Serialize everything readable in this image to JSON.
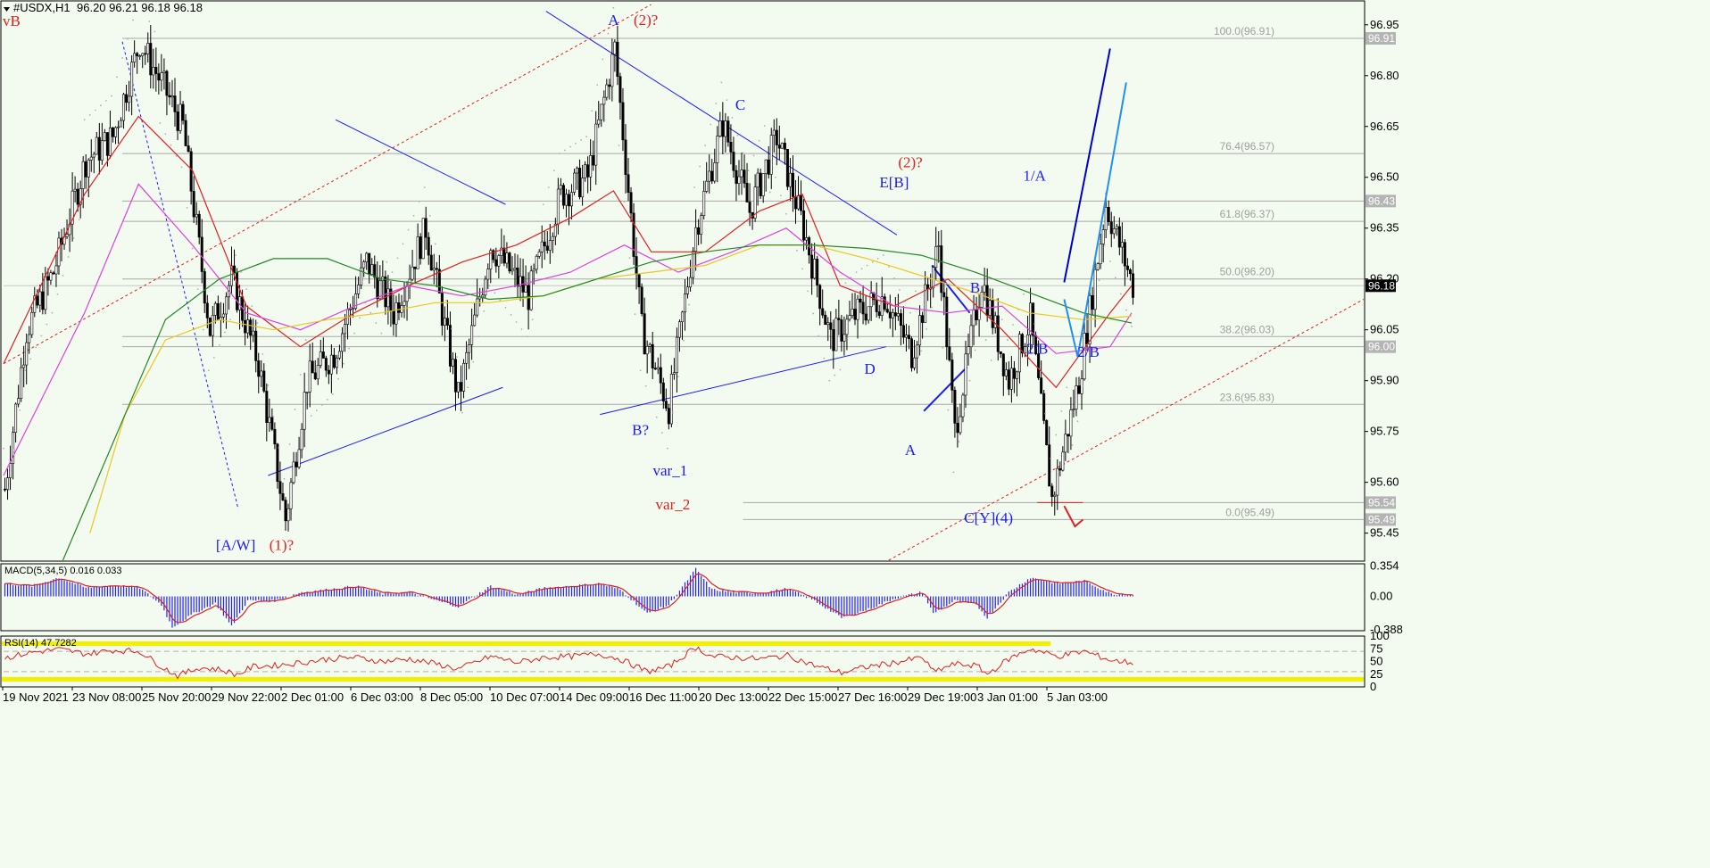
{
  "header": {
    "symbol_label": "#USDX,H1",
    "ohlc_label": "96.20 96.21 96.18 96.18",
    "corner_wave_label": "vB"
  },
  "chart_data": {
    "type": "candlestick",
    "symbol": "#USDX",
    "timeframe": "H1",
    "y_axis": {
      "ylim": [
        95.37,
        97.01
      ],
      "ticks": [
        "96.95",
        "96.80",
        "96.65",
        "96.50",
        "96.35",
        "96.20",
        "96.05",
        "95.90",
        "95.75",
        "95.60",
        "95.45"
      ]
    },
    "x_axis": {
      "ticks": [
        "19 Nov 2021",
        "23 Nov 08:00",
        "25 Nov 20:00",
        "29 Nov 22:00",
        "2 Dec 01:00",
        "6 Dec 03:00",
        "8 Dec 05:00",
        "10 Dec 07:00",
        "14 Dec 09:00",
        "16 Dec 11:00",
        "20 Dec 13:00",
        "22 Dec 15:00",
        "27 Dec 16:00",
        "29 Dec 19:00",
        "3 Jan 01:00",
        "5 Jan 03:00"
      ]
    },
    "price_key_points": [
      {
        "t": 0,
        "v": 95.58
      },
      {
        "t": 8,
        "v": 96.05
      },
      {
        "t": 18,
        "v": 96.22
      },
      {
        "t": 30,
        "v": 96.55
      },
      {
        "t": 40,
        "v": 96.62
      },
      {
        "t": 50,
        "v": 96.9
      },
      {
        "t": 58,
        "v": 96.78
      },
      {
        "t": 66,
        "v": 96.65
      },
      {
        "t": 76,
        "v": 96.05
      },
      {
        "t": 84,
        "v": 96.2
      },
      {
        "t": 94,
        "v": 95.95
      },
      {
        "t": 104,
        "v": 95.49
      },
      {
        "t": 112,
        "v": 95.9
      },
      {
        "t": 122,
        "v": 95.98
      },
      {
        "t": 134,
        "v": 96.25
      },
      {
        "t": 144,
        "v": 96.1
      },
      {
        "t": 156,
        "v": 96.35
      },
      {
        "t": 168,
        "v": 95.85
      },
      {
        "t": 180,
        "v": 96.3
      },
      {
        "t": 194,
        "v": 96.15
      },
      {
        "t": 206,
        "v": 96.45
      },
      {
        "t": 216,
        "v": 96.5
      },
      {
        "t": 226,
        "v": 96.88
      },
      {
        "t": 236,
        "v": 96.05
      },
      {
        "t": 246,
        "v": 95.82
      },
      {
        "t": 256,
        "v": 96.35
      },
      {
        "t": 266,
        "v": 96.66
      },
      {
        "t": 276,
        "v": 96.4
      },
      {
        "t": 286,
        "v": 96.62
      },
      {
        "t": 296,
        "v": 96.35
      },
      {
        "t": 306,
        "v": 96.02
      },
      {
        "t": 316,
        "v": 96.1
      },
      {
        "t": 326,
        "v": 96.15
      },
      {
        "t": 336,
        "v": 95.98
      },
      {
        "t": 346,
        "v": 96.3
      },
      {
        "t": 352,
        "v": 95.75
      },
      {
        "t": 362,
        "v": 96.2
      },
      {
        "t": 372,
        "v": 95.9
      },
      {
        "t": 380,
        "v": 96.08
      },
      {
        "t": 388,
        "v": 95.55
      },
      {
        "t": 398,
        "v": 95.9
      },
      {
        "t": 408,
        "v": 96.42
      },
      {
        "t": 418,
        "v": 96.18
      }
    ],
    "moving_averages": [
      {
        "name": "MA red",
        "color": "#e02020",
        "points": [
          [
            0,
            95.95
          ],
          [
            30,
            96.45
          ],
          [
            50,
            96.68
          ],
          [
            70,
            96.52
          ],
          [
            90,
            96.12
          ],
          [
            110,
            96.0
          ],
          [
            130,
            96.1
          ],
          [
            150,
            96.18
          ],
          [
            170,
            96.25
          ],
          [
            190,
            96.3
          ],
          [
            210,
            96.38
          ],
          [
            226,
            96.46
          ],
          [
            240,
            96.28
          ],
          [
            260,
            96.28
          ],
          [
            280,
            96.4
          ],
          [
            296,
            96.45
          ],
          [
            310,
            96.18
          ],
          [
            330,
            96.12
          ],
          [
            350,
            96.2
          ],
          [
            370,
            96.05
          ],
          [
            390,
            95.88
          ],
          [
            410,
            96.1
          ],
          [
            418,
            96.18
          ]
        ]
      },
      {
        "name": "MA magenta",
        "color": "#e040e0",
        "points": [
          [
            0,
            95.62
          ],
          [
            30,
            96.1
          ],
          [
            50,
            96.48
          ],
          [
            70,
            96.3
          ],
          [
            90,
            96.1
          ],
          [
            110,
            96.05
          ],
          [
            130,
            96.12
          ],
          [
            150,
            96.18
          ],
          [
            170,
            96.15
          ],
          [
            190,
            96.18
          ],
          [
            210,
            96.22
          ],
          [
            230,
            96.3
          ],
          [
            250,
            96.22
          ],
          [
            270,
            96.28
          ],
          [
            290,
            96.35
          ],
          [
            310,
            96.22
          ],
          [
            330,
            96.12
          ],
          [
            350,
            96.1
          ],
          [
            370,
            96.12
          ],
          [
            390,
            95.98
          ],
          [
            410,
            96.0
          ],
          [
            418,
            96.1
          ]
        ]
      },
      {
        "name": "MA yellow",
        "color": "#e8c820",
        "points": [
          [
            32,
            95.45
          ],
          [
            45,
            95.8
          ],
          [
            60,
            96.02
          ],
          [
            80,
            96.08
          ],
          [
            100,
            96.05
          ],
          [
            120,
            96.08
          ],
          [
            140,
            96.1
          ],
          [
            160,
            96.13
          ],
          [
            180,
            96.13
          ],
          [
            200,
            96.15
          ],
          [
            220,
            96.2
          ],
          [
            240,
            96.22
          ],
          [
            260,
            96.24
          ],
          [
            280,
            96.3
          ],
          [
            300,
            96.3
          ],
          [
            320,
            96.26
          ],
          [
            340,
            96.21
          ],
          [
            360,
            96.16
          ],
          [
            380,
            96.1
          ],
          [
            400,
            96.08
          ],
          [
            418,
            96.09
          ]
        ]
      },
      {
        "name": "MA green",
        "color": "#228822",
        "points": [
          [
            22,
            95.37
          ],
          [
            45,
            95.8
          ],
          [
            60,
            96.08
          ],
          [
            80,
            96.2
          ],
          [
            100,
            96.26
          ],
          [
            120,
            96.26
          ],
          [
            140,
            96.2
          ],
          [
            160,
            96.18
          ],
          [
            180,
            96.14
          ],
          [
            200,
            96.15
          ],
          [
            220,
            96.2
          ],
          [
            240,
            96.25
          ],
          [
            260,
            96.28
          ],
          [
            280,
            96.3
          ],
          [
            300,
            96.3
          ],
          [
            320,
            96.29
          ],
          [
            340,
            96.27
          ],
          [
            360,
            96.22
          ],
          [
            380,
            96.16
          ],
          [
            400,
            96.1
          ],
          [
            418,
            96.07
          ]
        ]
      }
    ],
    "horizontal_levels": [
      {
        "price": 96.91,
        "label": "100.0(96.91)",
        "axis_label": "96.91"
      },
      {
        "price": 96.57,
        "label": "76.4(96.57)"
      },
      {
        "price": 96.43,
        "label": "",
        "axis_label": "96.43"
      },
      {
        "price": 96.37,
        "label": "61.8(96.37)"
      },
      {
        "price": 96.2,
        "label": "50.0(96.20)"
      },
      {
        "price": 96.03,
        "label": "38.2(96.03)"
      },
      {
        "price": 96.0,
        "label": "",
        "axis_label": "96.00"
      },
      {
        "price": 95.83,
        "label": "23.6(95.83)"
      },
      {
        "price": 95.54,
        "label": "",
        "axis_label": "95.54"
      },
      {
        "price": 95.49,
        "label": "0.0(95.49)",
        "axis_label": "95.49"
      }
    ],
    "current_price": {
      "price": 96.18,
      "label": "96.18"
    },
    "wave_labels": [
      {
        "text": "A",
        "t": 226,
        "v": 96.95,
        "color": "#1a1aff"
      },
      {
        "text": "(2)?",
        "t": 238,
        "v": 96.95,
        "color": "#e02020"
      },
      {
        "text": "C",
        "t": 273,
        "v": 96.7,
        "color": "#1a1aff"
      },
      {
        "text": "(2)?",
        "t": 336,
        "v": 96.53,
        "color": "#e02020"
      },
      {
        "text": "E[B]",
        "t": 330,
        "v": 96.47,
        "color": "#1a1aff"
      },
      {
        "text": "1/A",
        "t": 382,
        "v": 96.49,
        "color": "#1a1aff"
      },
      {
        "text": "B",
        "t": 360,
        "v": 96.16,
        "color": "#1a1aff"
      },
      {
        "text": "2/B",
        "t": 383,
        "v": 95.98,
        "color": "#1a1aff"
      },
      {
        "text": "2/B",
        "t": 402,
        "v": 95.97,
        "color": "#1a1aff"
      },
      {
        "text": "D",
        "t": 321,
        "v": 95.92,
        "color": "#1a1aff"
      },
      {
        "text": "B?",
        "t": 236,
        "v": 95.74,
        "color": "#1a1aff"
      },
      {
        "text": "A",
        "t": 336,
        "v": 95.68,
        "color": "#1a1aff"
      },
      {
        "text": "var_1",
        "t": 247,
        "v": 95.62,
        "color": "#1a1aff"
      },
      {
        "text": "var_2",
        "t": 248,
        "v": 95.52,
        "color": "#e02020"
      },
      {
        "text": "C[Y](4)",
        "t": 365,
        "v": 95.48,
        "color": "#1a1aff"
      },
      {
        "text": "[A/W]",
        "t": 86,
        "v": 95.4,
        "color": "#1a1aff"
      },
      {
        "text": "(1)?",
        "t": 103,
        "v": 95.4,
        "color": "#e02020"
      }
    ],
    "trend_lines": [
      {
        "color": "#1a1aff",
        "style": "solid",
        "from": [
          123,
          96.67
        ],
        "to": [
          186,
          96.42
        ]
      },
      {
        "color": "#1a1aff",
        "style": "solid",
        "from": [
          98,
          95.62
        ],
        "to": [
          185,
          95.88
        ]
      },
      {
        "color": "#1a1aff",
        "style": "solid",
        "from": [
          201,
          96.99
        ],
        "to": [
          331,
          96.33
        ]
      },
      {
        "color": "#1a1aff",
        "style": "solid",
        "from": [
          221,
          95.8
        ],
        "to": [
          327,
          96.0
        ]
      },
      {
        "color": "#1a1aff",
        "style": "solid",
        "from": [
          344,
          96.24
        ],
        "to": [
          358,
          96.1
        ],
        "width": 2
      },
      {
        "color": "#1a1aff",
        "style": "solid",
        "from": [
          341,
          95.81
        ],
        "to": [
          357,
          95.94
        ],
        "width": 2
      },
      {
        "color": "#1a1aff",
        "style": "dashed",
        "from": [
          44,
          96.9
        ],
        "to": [
          87,
          95.52
        ]
      },
      {
        "color": "#e02020",
        "style": "dashed",
        "from": [
          0,
          95.95
        ],
        "to": [
          240,
          97.01
        ]
      },
      {
        "color": "#e02020",
        "style": "dashed",
        "from": [
          328,
          95.37
        ],
        "to": [
          504,
          96.14
        ]
      },
      {
        "color": "#e02020",
        "style": "solid",
        "from": [
          383,
          95.54
        ],
        "to": [
          400,
          95.54
        ]
      }
    ],
    "projection_paths": [
      {
        "color": "#0000cc",
        "points": [
          [
            393,
            96.19
          ],
          [
            410,
            96.88
          ]
        ]
      },
      {
        "color": "#2090f0",
        "points": [
          [
            393,
            96.14
          ],
          [
            398,
            95.97
          ],
          [
            416,
            96.78
          ]
        ]
      },
      {
        "color": "#e02020",
        "points": [
          [
            393,
            95.53
          ],
          [
            397,
            95.47
          ],
          [
            400,
            95.49
          ]
        ]
      }
    ],
    "macd": {
      "label": "MACD(5,34,5) 0.016 0.033",
      "ylim": [
        -0.4,
        0.38
      ],
      "ticks": [
        "0.354",
        "0.00",
        "-0.388"
      ],
      "histogram_key_points": [
        [
          0,
          0.15
        ],
        [
          10,
          0.12
        ],
        [
          20,
          0.22
        ],
        [
          30,
          0.1
        ],
        [
          40,
          0.13
        ],
        [
          50,
          0.1
        ],
        [
          58,
          -0.1
        ],
        [
          62,
          -0.36
        ],
        [
          70,
          -0.2
        ],
        [
          78,
          -0.08
        ],
        [
          84,
          -0.35
        ],
        [
          90,
          -0.05
        ],
        [
          100,
          -0.05
        ],
        [
          110,
          0.05
        ],
        [
          120,
          0.08
        ],
        [
          130,
          0.12
        ],
        [
          140,
          0.03
        ],
        [
          150,
          0.05
        ],
        [
          160,
          -0.05
        ],
        [
          168,
          -0.12
        ],
        [
          180,
          0.12
        ],
        [
          190,
          0.02
        ],
        [
          200,
          0.1
        ],
        [
          210,
          0.12
        ],
        [
          220,
          0.15
        ],
        [
          228,
          0.08
        ],
        [
          238,
          -0.2
        ],
        [
          246,
          -0.1
        ],
        [
          256,
          0.32
        ],
        [
          262,
          0.08
        ],
        [
          270,
          0.05
        ],
        [
          280,
          0.04
        ],
        [
          290,
          0.09
        ],
        [
          300,
          -0.05
        ],
        [
          310,
          -0.25
        ],
        [
          320,
          -0.15
        ],
        [
          330,
          -0.02
        ],
        [
          340,
          0.05
        ],
        [
          344,
          -0.2
        ],
        [
          352,
          -0.05
        ],
        [
          360,
          -0.1
        ],
        [
          364,
          -0.25
        ],
        [
          372,
          0.05
        ],
        [
          380,
          0.22
        ],
        [
          390,
          0.15
        ],
        [
          400,
          0.18
        ],
        [
          410,
          0.03
        ],
        [
          418,
          0.02
        ]
      ]
    },
    "rsi": {
      "label": "RSI(14) 47.7282",
      "ylim": [
        0,
        100
      ],
      "ticks": [
        "100",
        "75",
        "50",
        "25",
        "0"
      ],
      "levels": [
        70,
        30
      ],
      "key_points": [
        [
          0,
          57
        ],
        [
          10,
          68
        ],
        [
          20,
          74
        ],
        [
          30,
          65
        ],
        [
          40,
          72
        ],
        [
          50,
          70
        ],
        [
          58,
          40
        ],
        [
          64,
          22
        ],
        [
          72,
          38
        ],
        [
          80,
          34
        ],
        [
          86,
          24
        ],
        [
          92,
          40
        ],
        [
          100,
          42
        ],
        [
          110,
          48
        ],
        [
          120,
          55
        ],
        [
          130,
          58
        ],
        [
          140,
          50
        ],
        [
          150,
          55
        ],
        [
          160,
          45
        ],
        [
          168,
          35
        ],
        [
          180,
          60
        ],
        [
          190,
          48
        ],
        [
          200,
          58
        ],
        [
          210,
          60
        ],
        [
          220,
          65
        ],
        [
          228,
          55
        ],
        [
          238,
          30
        ],
        [
          246,
          40
        ],
        [
          256,
          78
        ],
        [
          262,
          60
        ],
        [
          270,
          58
        ],
        [
          280,
          55
        ],
        [
          290,
          62
        ],
        [
          300,
          42
        ],
        [
          310,
          28
        ],
        [
          320,
          40
        ],
        [
          330,
          48
        ],
        [
          340,
          58
        ],
        [
          344,
          30
        ],
        [
          352,
          45
        ],
        [
          360,
          42
        ],
        [
          364,
          25
        ],
        [
          372,
          55
        ],
        [
          380,
          75
        ],
        [
          390,
          60
        ],
        [
          400,
          70
        ],
        [
          410,
          52
        ],
        [
          418,
          47.7
        ]
      ]
    }
  }
}
